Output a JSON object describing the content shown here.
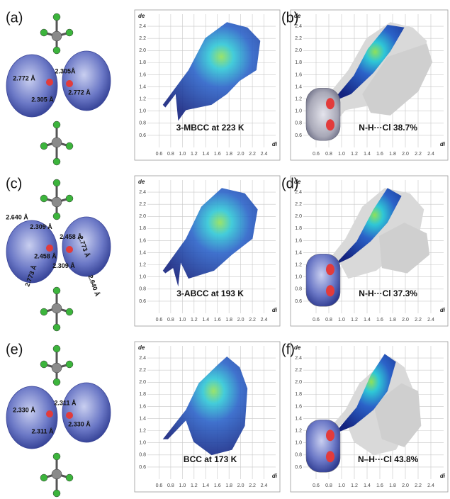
{
  "axis": {
    "xlim": [
      0.4,
      2.6
    ],
    "ylim": [
      0.4,
      2.6
    ],
    "ticks": [
      0.6,
      0.8,
      {
        "value": 1,
        "label": "1.0"
      },
      1.2,
      1.4,
      1.6,
      1.8,
      {
        "value": 2,
        "label": "2.0"
      },
      2.2,
      2.4
    ],
    "x_label": "di",
    "y_label": "de"
  },
  "rows": [
    {
      "label": "(a)",
      "distances": [
        "2.772 Å",
        "2.305Å",
        "2.305 Å",
        "2.772 Å"
      ],
      "plot_caption": "3-MBCC at 223 K",
      "contact_label": "(b)",
      "contact_caption": "N-H···Cl 38.7%"
    },
    {
      "label": "(c)",
      "distances": [
        "2.640 Å",
        "2.309 Å",
        "2.458 Å",
        "2.773 Å",
        "2.458 Å",
        "2.309 Å",
        "2.773 Å",
        "2.640 Å"
      ],
      "plot_caption": "3-ABCC at 193 K",
      "contact_label": "(d)",
      "contact_caption": "N-H···Cl 37.3%"
    },
    {
      "label": "(e)",
      "distances": [
        "2.330 Å",
        "2.311 Å",
        "2.311 Å",
        "2.330 Å"
      ],
      "plot_caption": "BCC at 173 K",
      "contact_label": "(f)",
      "contact_caption": "N–H···Cl 43.8%"
    }
  ]
}
